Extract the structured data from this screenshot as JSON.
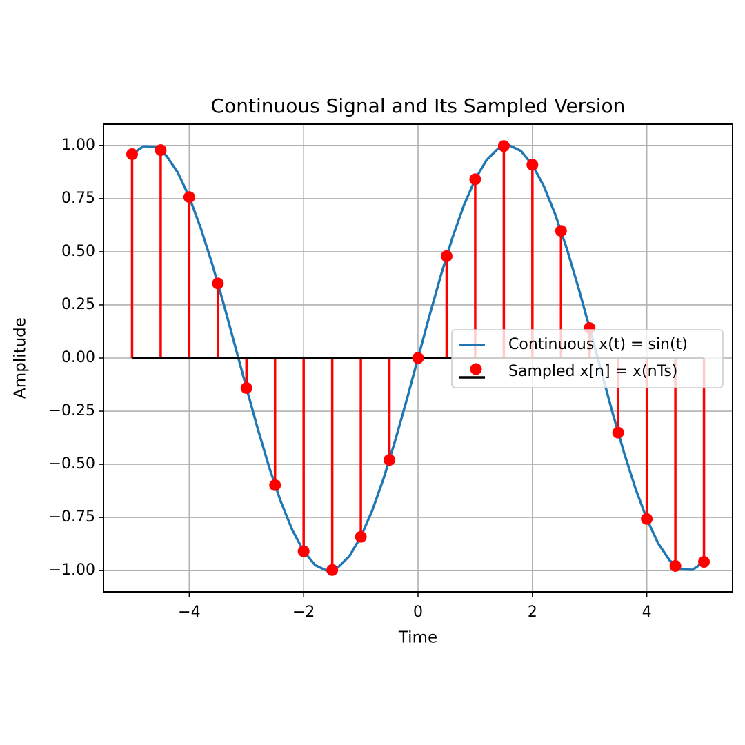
{
  "chart_data": {
    "type": "line",
    "title": "Continuous Signal and Its Sampled Version",
    "x_label": "Time",
    "y_label": "Amplitude",
    "xlim": [
      -5.5,
      5.5
    ],
    "ylim": [
      -1.1,
      1.1
    ],
    "xticks": [
      {
        "value": -4,
        "label": "−4"
      },
      {
        "value": -2,
        "label": "−2"
      },
      0,
      2,
      4
    ],
    "yticks": [
      {
        "value": 1,
        "label": "1.00"
      },
      {
        "value": 0.75,
        "label": "0.75"
      },
      {
        "value": 0.5,
        "label": "0.50"
      },
      {
        "value": 0.25,
        "label": "0.25"
      },
      {
        "value": 0,
        "label": "0.00"
      },
      {
        "value": -0.25,
        "label": "−0.25"
      },
      {
        "value": -0.5,
        "label": "−0.50"
      },
      {
        "value": -0.75,
        "label": "−0.75"
      },
      {
        "value": -1,
        "label": "−1.00"
      }
    ],
    "grid": true,
    "legend": "right",
    "baseline_color": "#000000",
    "series": [
      {
        "name": "Continuous x(t) = sin(t)",
        "type": "line",
        "color": "#1f77b4",
        "x": [
          -5.0,
          -4.8,
          -4.6,
          -4.4,
          -4.2,
          -4.0,
          -3.8,
          -3.6,
          -3.4,
          -3.2,
          -3.0,
          -2.8,
          -2.6,
          -2.4,
          -2.2,
          -2.0,
          -1.8,
          -1.6,
          -1.4,
          -1.2,
          -1.0,
          -0.8,
          -0.6,
          -0.4,
          -0.2,
          0,
          0.2,
          0.4,
          0.6,
          0.8,
          1.0,
          1.2,
          1.4,
          1.6,
          1.8,
          2.0,
          2.2,
          2.4,
          2.6,
          2.8,
          3.0,
          3.2,
          3.4,
          3.6,
          3.8,
          4.0,
          4.2,
          4.4,
          4.6,
          4.8,
          5.0
        ],
        "values": [
          0.959,
          0.996,
          0.994,
          0.952,
          0.872,
          0.757,
          0.612,
          0.443,
          0.256,
          0.058,
          -0.141,
          -0.335,
          -0.516,
          -0.675,
          -0.808,
          -0.909,
          -0.974,
          -1.0,
          -0.985,
          -0.932,
          -0.841,
          -0.717,
          -0.565,
          -0.389,
          -0.199,
          0,
          0.199,
          0.389,
          0.565,
          0.717,
          0.841,
          0.932,
          0.985,
          1.0,
          0.974,
          0.909,
          0.808,
          0.675,
          0.516,
          0.335,
          0.141,
          -0.058,
          -0.256,
          -0.443,
          -0.612,
          -0.757,
          -0.872,
          -0.952,
          -0.994,
          -0.996,
          -0.959
        ]
      },
      {
        "name": "Sampled x[n] = x(nTs)",
        "type": "stem",
        "color": "#ff0000",
        "x": [
          -5.0,
          -4.5,
          -4.0,
          -3.5,
          -3.0,
          -2.5,
          -2.0,
          -1.5,
          -1.0,
          -0.5,
          0,
          0.5,
          1.0,
          1.5,
          2.0,
          2.5,
          3.0,
          3.5,
          4.0,
          4.5,
          5.0
        ],
        "values": [
          0.959,
          0.978,
          0.757,
          0.351,
          -0.141,
          -0.598,
          -0.909,
          -0.997,
          -0.841,
          -0.479,
          0,
          0.479,
          0.841,
          0.997,
          0.909,
          0.598,
          0.141,
          -0.351,
          -0.757,
          -0.978,
          -0.959
        ]
      }
    ]
  }
}
